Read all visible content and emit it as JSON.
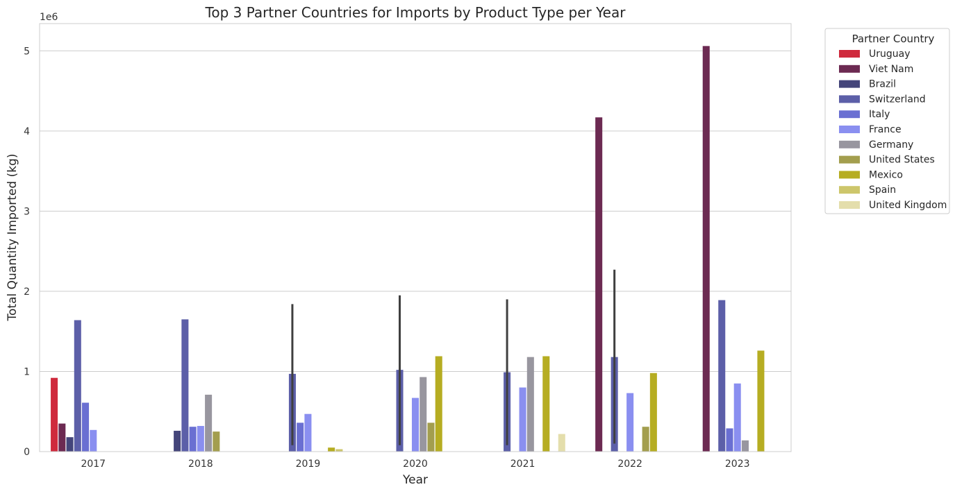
{
  "chart_data": {
    "type": "bar",
    "title": "Top 3 Partner Countries for Imports by Product Type per Year",
    "xlabel": "Year",
    "ylabel": "Total Quantity Imported (kg)",
    "scale_label": "1e6",
    "ylim": [
      0,
      5.34
    ],
    "yticks": [
      0,
      1,
      2,
      3,
      4,
      5
    ],
    "grid": true,
    "legend_position": "outside-right",
    "legend_title": "Partner Country",
    "categories": [
      "2017",
      "2018",
      "2019",
      "2020",
      "2021",
      "2022",
      "2023"
    ],
    "error_bar_color": "#3f3f3f",
    "series": [
      {
        "name": "Uruguay",
        "color": "#cf2a3d",
        "values": [
          0.92,
          null,
          null,
          null,
          null,
          null,
          null
        ]
      },
      {
        "name": "Viet Nam",
        "color": "#6c2a52",
        "values": [
          0.35,
          null,
          null,
          null,
          null,
          4.17,
          5.06
        ]
      },
      {
        "name": "Brazil",
        "color": "#44457a",
        "values": [
          0.18,
          0.26,
          null,
          null,
          null,
          null,
          null
        ]
      },
      {
        "name": "Switzerland",
        "color": "#5c5fa8",
        "values": [
          1.64,
          1.65,
          0.97,
          1.02,
          0.99,
          1.18,
          1.89
        ],
        "errors": [
          null,
          null,
          [
            0.08,
            1.84
          ],
          [
            0.08,
            1.95
          ],
          [
            0.08,
            1.9
          ],
          [
            0.1,
            2.27
          ],
          null
        ]
      },
      {
        "name": "Italy",
        "color": "#6a6fd2",
        "values": [
          0.61,
          0.31,
          0.36,
          null,
          null,
          null,
          0.29
        ]
      },
      {
        "name": "France",
        "color": "#8a8ff0",
        "values": [
          0.27,
          0.32,
          0.47,
          0.67,
          0.8,
          0.73,
          0.85
        ]
      },
      {
        "name": "Germany",
        "color": "#98969f",
        "values": [
          null,
          0.71,
          null,
          0.93,
          1.18,
          null,
          0.14
        ]
      },
      {
        "name": "United States",
        "color": "#a39e4e",
        "values": [
          null,
          0.25,
          null,
          0.36,
          null,
          0.31,
          null
        ]
      },
      {
        "name": "Mexico",
        "color": "#b6ad22",
        "values": [
          null,
          null,
          0.05,
          1.19,
          1.19,
          0.98,
          1.26
        ]
      },
      {
        "name": "Spain",
        "color": "#cdc66b",
        "values": [
          null,
          null,
          0.03,
          null,
          null,
          null,
          null
        ]
      },
      {
        "name": "United Kingdom",
        "color": "#e4deac",
        "values": [
          null,
          null,
          null,
          null,
          0.22,
          null,
          null
        ]
      }
    ]
  }
}
